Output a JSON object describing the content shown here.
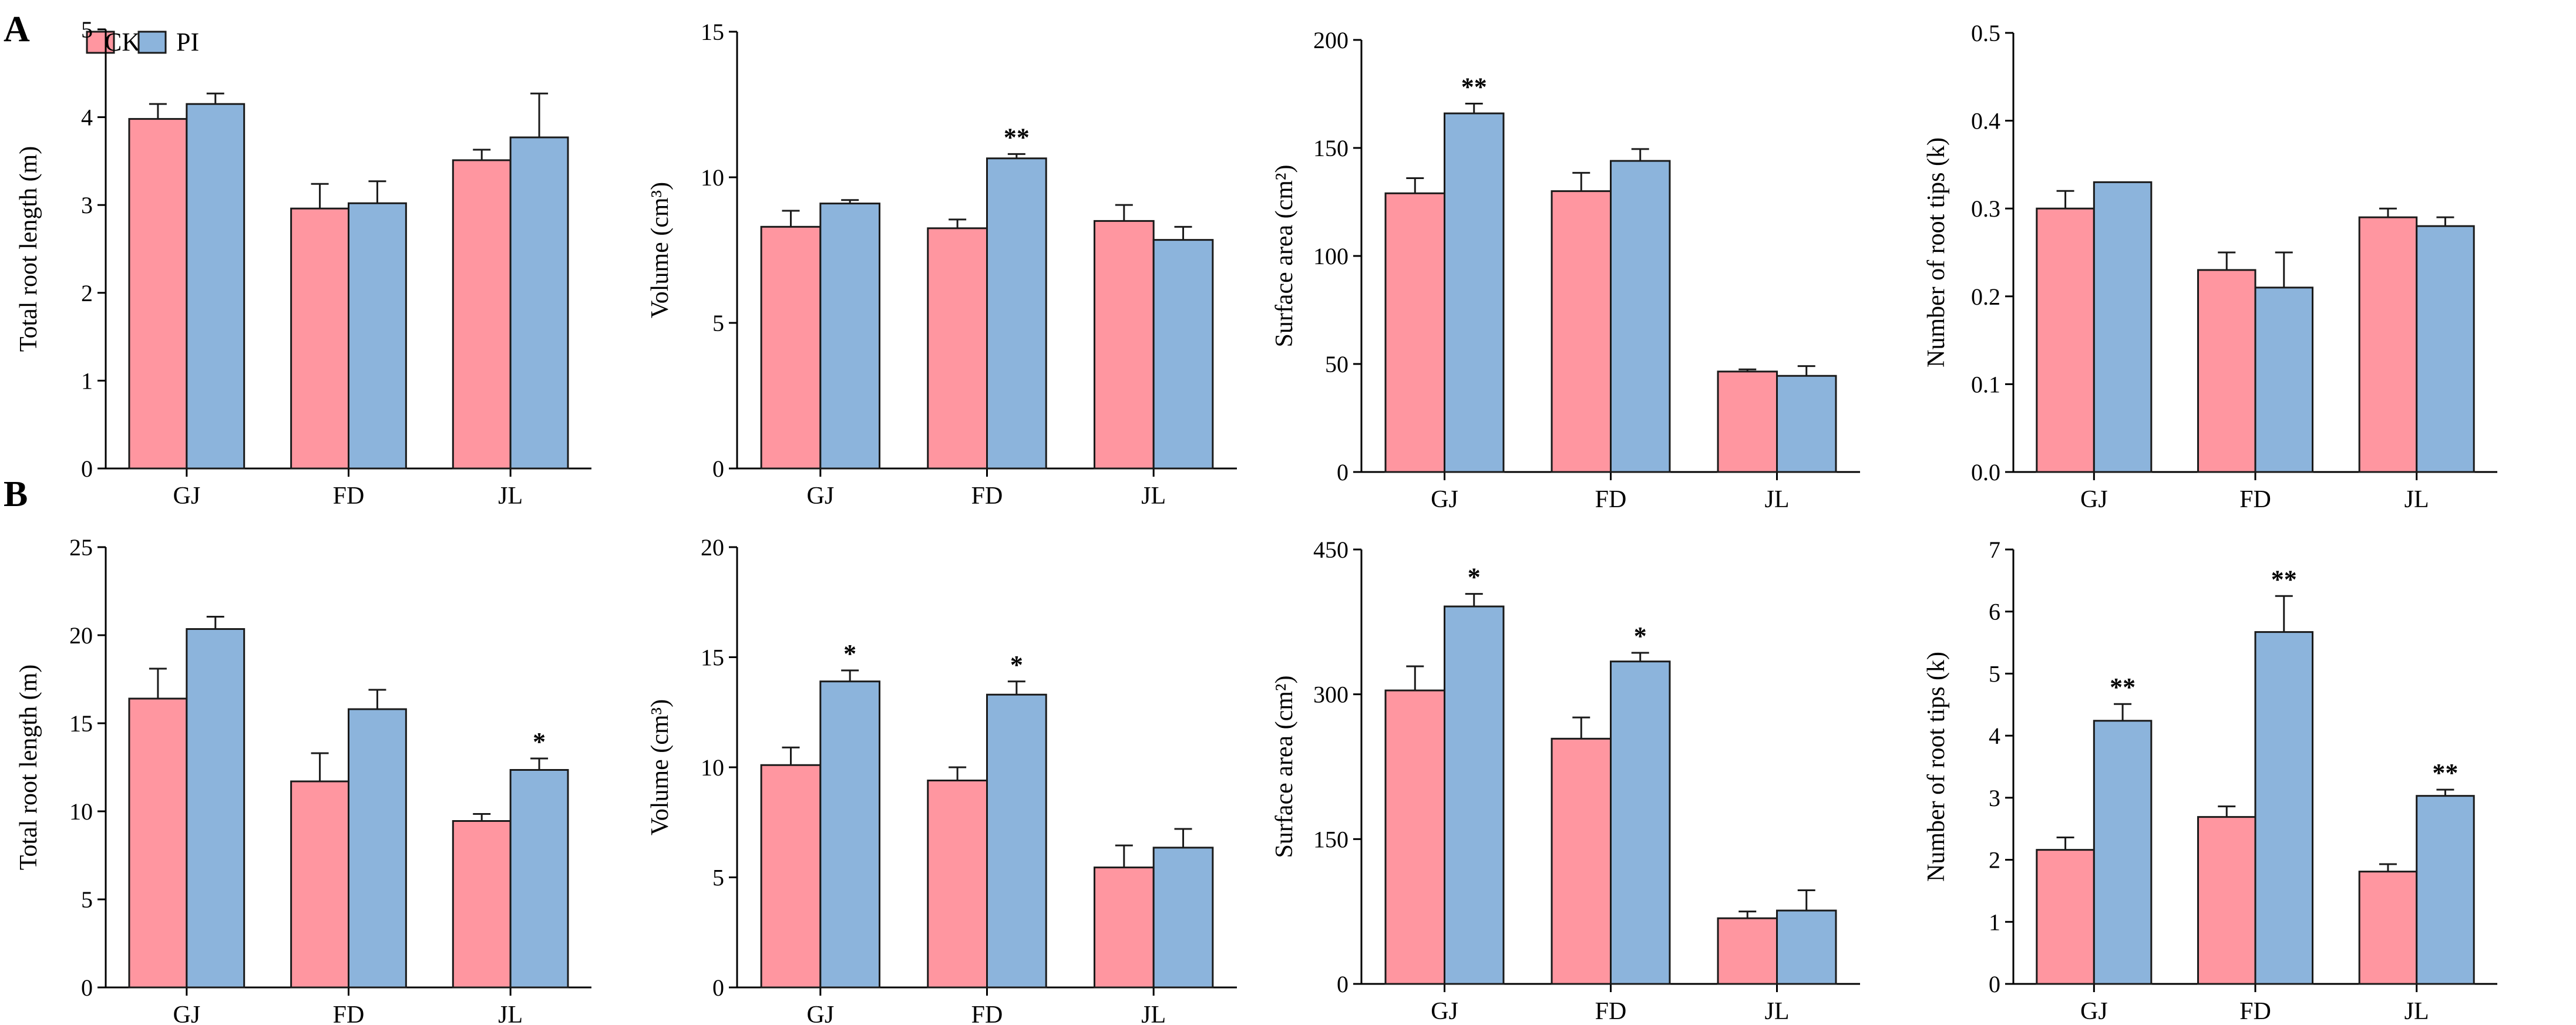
{
  "figure": {
    "panel_labels": [
      "A",
      "B"
    ],
    "legend": [
      {
        "name": "CK",
        "color": "#FF96A0"
      },
      {
        "name": "PI",
        "color": "#8CB4DC"
      }
    ]
  },
  "chart_data": [
    {
      "type": "bar",
      "panel": "A",
      "categories": [
        "GJ",
        "FD",
        "JL"
      ],
      "ylabel": "Total root length (m)",
      "ylim": [
        0,
        5
      ],
      "yticks": [
        "0",
        "1",
        "2",
        "3",
        "4",
        "5"
      ],
      "series": [
        {
          "name": "CK",
          "values": [
            3.98,
            2.96,
            3.51
          ],
          "errors": [
            0.17,
            0.28,
            0.12
          ]
        },
        {
          "name": "PI",
          "values": [
            4.15,
            3.02,
            3.77
          ],
          "errors": [
            0.12,
            0.25,
            0.5
          ]
        }
      ],
      "significance": {
        "CK": [
          "",
          "",
          ""
        ],
        "PI": [
          "",
          "",
          ""
        ]
      }
    },
    {
      "type": "bar",
      "panel": "A",
      "categories": [
        "GJ",
        "FD",
        "JL"
      ],
      "ylabel": "Volume (cm³)",
      "ylim": [
        0,
        15
      ],
      "yticks": [
        "0",
        "5",
        "10",
        "15"
      ],
      "series": [
        {
          "name": "CK",
          "values": [
            8.3,
            8.25,
            8.5
          ],
          "errors": [
            0.55,
            0.3,
            0.55
          ]
        },
        {
          "name": "PI",
          "values": [
            9.1,
            10.65,
            7.85
          ],
          "errors": [
            0.12,
            0.15,
            0.45
          ]
        }
      ],
      "significance": {
        "CK": [
          "",
          "",
          ""
        ],
        "PI": [
          "",
          "**",
          ""
        ]
      }
    },
    {
      "type": "bar",
      "panel": "A",
      "categories": [
        "GJ",
        "FD",
        "JL"
      ],
      "ylabel": "Surface area (cm²)",
      "ylim": [
        0,
        200
      ],
      "yticks": [
        "0",
        "50",
        "100",
        "150",
        "200"
      ],
      "series": [
        {
          "name": "CK",
          "values": [
            129,
            130,
            46.5
          ],
          "errors": [
            7,
            8.5,
            1
          ]
        },
        {
          "name": "PI",
          "values": [
            166,
            144,
            44.5
          ],
          "errors": [
            4.5,
            5.5,
            4.5
          ]
        }
      ],
      "significance": {
        "CK": [
          "",
          "",
          ""
        ],
        "PI": [
          "**",
          "",
          ""
        ]
      }
    },
    {
      "type": "bar",
      "panel": "A",
      "categories": [
        "GJ",
        "FD",
        "JL"
      ],
      "ylabel": "Number of root tips (k)",
      "ylim": [
        0,
        0.5
      ],
      "yticks": [
        "0.0",
        "0.1",
        "0.2",
        "0.3",
        "0.4",
        "0.5"
      ],
      "series": [
        {
          "name": "CK",
          "values": [
            0.3,
            0.23,
            0.29
          ],
          "errors": [
            0.02,
            0.02,
            0.01
          ]
        },
        {
          "name": "PI",
          "values": [
            0.33,
            0.21,
            0.28
          ],
          "errors": [
            0.0,
            0.04,
            0.01
          ]
        }
      ],
      "significance": {
        "CK": [
          "",
          "",
          ""
        ],
        "PI": [
          "",
          "",
          ""
        ]
      }
    },
    {
      "type": "bar",
      "panel": "B",
      "categories": [
        "GJ",
        "FD",
        "JL"
      ],
      "ylabel": "Total root length (m)",
      "ylim": [
        0,
        25
      ],
      "yticks": [
        "0",
        "5",
        "10",
        "15",
        "20",
        "25"
      ],
      "series": [
        {
          "name": "CK",
          "values": [
            16.4,
            11.7,
            9.45
          ],
          "errors": [
            1.7,
            1.6,
            0.4
          ]
        },
        {
          "name": "PI",
          "values": [
            20.35,
            15.8,
            12.35
          ],
          "errors": [
            0.7,
            1.1,
            0.65
          ]
        }
      ],
      "significance": {
        "CK": [
          "",
          "",
          ""
        ],
        "PI": [
          "",
          "",
          "*"
        ]
      }
    },
    {
      "type": "bar",
      "panel": "B",
      "categories": [
        "GJ",
        "FD",
        "JL"
      ],
      "ylabel": "Volume (cm³)",
      "ylim": [
        0,
        20
      ],
      "yticks": [
        "0",
        "5",
        "10",
        "15",
        "20"
      ],
      "series": [
        {
          "name": "CK",
          "values": [
            10.1,
            9.4,
            5.45
          ],
          "errors": [
            0.8,
            0.6,
            1.0
          ]
        },
        {
          "name": "PI",
          "values": [
            13.9,
            13.3,
            6.35
          ],
          "errors": [
            0.5,
            0.6,
            0.85
          ]
        }
      ],
      "significance": {
        "CK": [
          "",
          "",
          ""
        ],
        "PI": [
          "*",
          "*",
          ""
        ]
      }
    },
    {
      "type": "bar",
      "panel": "B",
      "categories": [
        "GJ",
        "FD",
        "JL"
      ],
      "ylabel": "Surface area (cm²)",
      "ylim": [
        0,
        450
      ],
      "yticks": [
        "0",
        "150",
        "300",
        "450"
      ],
      "series": [
        {
          "name": "CK",
          "values": [
            304,
            254,
            68
          ],
          "errors": [
            25,
            22,
            7
          ]
        },
        {
          "name": "PI",
          "values": [
            391,
            334,
            76
          ],
          "errors": [
            13,
            9,
            21
          ]
        }
      ],
      "significance": {
        "CK": [
          "",
          "",
          ""
        ],
        "PI": [
          "*",
          "*",
          ""
        ]
      }
    },
    {
      "type": "bar",
      "panel": "B",
      "categories": [
        "GJ",
        "FD",
        "JL"
      ],
      "ylabel": "Number of root tips (k)",
      "ylim": [
        0,
        7
      ],
      "yticks": [
        "0",
        "1",
        "2",
        "3",
        "4",
        "5",
        "6",
        "7"
      ],
      "series": [
        {
          "name": "CK",
          "values": [
            2.16,
            2.69,
            1.81
          ],
          "errors": [
            0.2,
            0.17,
            0.12
          ]
        },
        {
          "name": "PI",
          "values": [
            4.24,
            5.67,
            3.03
          ],
          "errors": [
            0.27,
            0.58,
            0.1
          ]
        }
      ],
      "significance": {
        "CK": [
          "",
          "",
          ""
        ],
        "PI": [
          "**",
          "**",
          "**"
        ]
      }
    }
  ]
}
